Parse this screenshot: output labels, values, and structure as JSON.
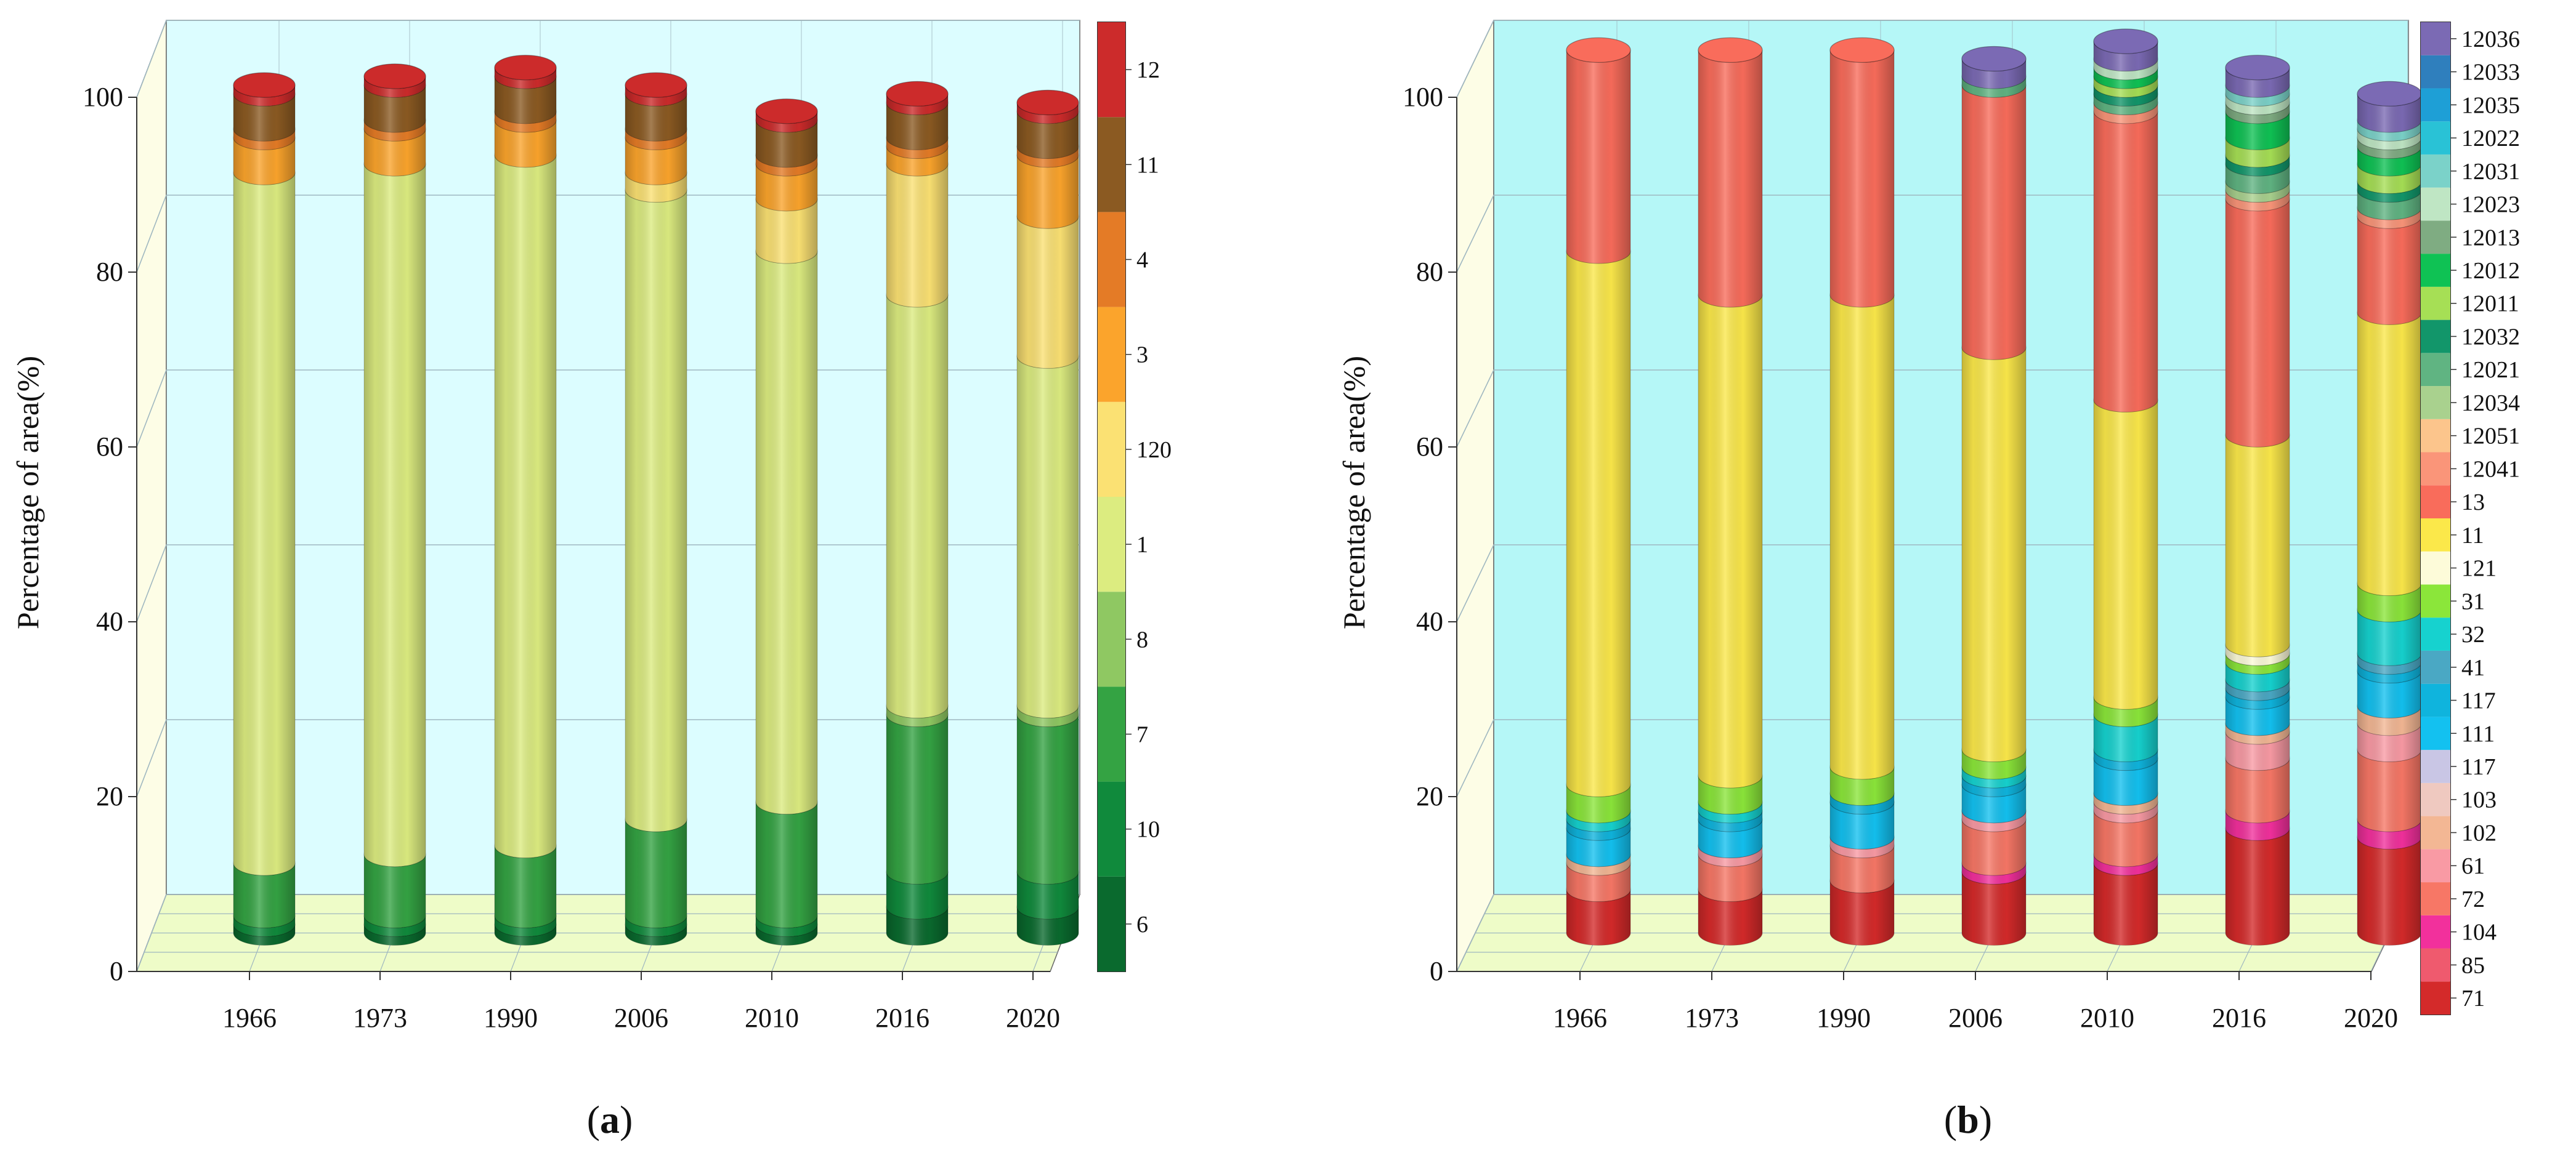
{
  "figure": {
    "panels": [
      {
        "label_open": "(",
        "label_letter": "a",
        "label_close": ")"
      },
      {
        "label_open": "(",
        "label_letter": "b",
        "label_close": ")"
      }
    ]
  },
  "colors": {
    "back_wall": "#dcfdff",
    "back_wall_b": "#b5f7f7",
    "floor": "#eefcc8",
    "side_wall": "#fdfde6",
    "grid": "#9fb7c0"
  },
  "chart_data": [
    {
      "type": "bar",
      "style": "3d-stacked-cylinders",
      "title": "",
      "xlabel": "",
      "ylabel": "Percentage of area(%)",
      "ylim": [
        0,
        100
      ],
      "yticks": [
        0,
        20,
        40,
        60,
        80,
        100
      ],
      "grid": true,
      "legend_placement": "right (color bar)",
      "categories": [
        "1966",
        "1973",
        "1990",
        "2006",
        "2010",
        "2016",
        "2020"
      ],
      "series": [
        {
          "name": "6",
          "color": "#0a6a2e",
          "values": [
            1,
            1,
            1,
            1,
            1,
            3,
            3
          ]
        },
        {
          "name": "10",
          "color": "#108a3c",
          "values": [
            1,
            1,
            1,
            1,
            1,
            4,
            4
          ]
        },
        {
          "name": "7",
          "color": "#34a343",
          "values": [
            6,
            7,
            8,
            11,
            13,
            18,
            18
          ]
        },
        {
          "name": "8",
          "color": "#8fc862",
          "values": [
            0,
            0,
            0,
            0,
            0,
            1,
            1
          ]
        },
        {
          "name": "1",
          "color": "#dcec80",
          "values": [
            79,
            79,
            79,
            72,
            63,
            47,
            40
          ]
        },
        {
          "name": "120",
          "color": "#fbe173",
          "values": [
            0,
            0,
            0,
            2,
            6,
            15,
            16
          ]
        },
        {
          "name": "3",
          "color": "#fba42c",
          "values": [
            4,
            4,
            4,
            4,
            4,
            2,
            7
          ]
        },
        {
          "name": "4",
          "color": "#e47b26",
          "values": [
            1,
            1,
            1,
            1,
            1,
            1,
            1
          ]
        },
        {
          "name": "11",
          "color": "#8b5a22",
          "values": [
            4,
            4,
            4,
            4,
            4,
            4,
            4
          ]
        },
        {
          "name": "12",
          "color": "#cc2b2b",
          "values": [
            1,
            1,
            1,
            1,
            1,
            1,
            1
          ]
        }
      ]
    },
    {
      "type": "bar",
      "style": "3d-stacked-cylinders",
      "title": "",
      "xlabel": "",
      "ylabel": "Percentage of area(%)",
      "ylim": [
        0,
        100
      ],
      "yticks": [
        0,
        20,
        40,
        60,
        80,
        100
      ],
      "grid": true,
      "legend_placement": "right (color bar)",
      "categories": [
        "1966",
        "1973",
        "1990",
        "2006",
        "2010",
        "2016",
        "2020"
      ],
      "series": [
        {
          "name": "71",
          "color": "#d42a2a",
          "values": [
            5,
            5,
            6,
            7,
            8,
            12,
            11
          ]
        },
        {
          "name": "85",
          "color": "#ef5a6e",
          "values": [
            0,
            0,
            0,
            0,
            0,
            0,
            0
          ]
        },
        {
          "name": "104",
          "color": "#f2309c",
          "values": [
            0,
            0,
            0,
            1,
            1,
            2,
            2
          ]
        },
        {
          "name": "72",
          "color": "#f77766",
          "values": [
            3,
            4,
            4,
            5,
            5,
            6,
            8
          ]
        },
        {
          "name": "61",
          "color": "#f99aa4",
          "values": [
            0,
            1,
            1,
            1,
            1,
            3,
            3
          ]
        },
        {
          "name": "102",
          "color": "#f3b794",
          "values": [
            1,
            0,
            0,
            0,
            1,
            1,
            2
          ]
        },
        {
          "name": "103",
          "color": "#efc9c0",
          "values": [
            0,
            0,
            0,
            0,
            0,
            0,
            0
          ]
        },
        {
          "name": "117",
          "color": "#c9c6e5",
          "values": [
            0,
            0,
            0,
            0,
            0,
            0,
            0
          ]
        },
        {
          "name": "111",
          "color": "#13c1f0",
          "values": [
            3,
            3,
            4,
            3,
            4,
            3,
            4
          ]
        },
        {
          "name": "117",
          "color": "#0fb4dd",
          "values": [
            1,
            1,
            1,
            1,
            1,
            1,
            1
          ]
        },
        {
          "name": "41",
          "color": "#4aa8c4",
          "values": [
            0,
            0,
            0,
            0,
            0,
            1,
            1
          ]
        },
        {
          "name": "32",
          "color": "#16d2cf",
          "values": [
            1,
            1,
            0,
            1,
            4,
            2,
            5
          ]
        },
        {
          "name": "31",
          "color": "#8be63a",
          "values": [
            3,
            3,
            3,
            2,
            2,
            1,
            3
          ]
        },
        {
          "name": "121",
          "color": "#fdfbd9",
          "values": [
            0,
            0,
            0,
            0,
            0,
            1,
            0
          ]
        },
        {
          "name": "11",
          "color": "#fbe84a",
          "values": [
            61,
            55,
            54,
            46,
            34,
            24,
            31
          ]
        },
        {
          "name": "13",
          "color": "#f96c5b",
          "values": [
            23,
            28,
            28,
            30,
            33,
            27,
            11
          ]
        },
        {
          "name": "12041",
          "color": "#fa9579",
          "values": [
            0,
            0,
            0,
            0,
            1,
            1,
            1
          ]
        },
        {
          "name": "12051",
          "color": "#fcc58c",
          "values": [
            0,
            0,
            0,
            0,
            0,
            0,
            0
          ]
        },
        {
          "name": "12034",
          "color": "#a9d18e",
          "values": [
            0,
            0,
            0,
            0,
            0,
            1,
            0
          ]
        },
        {
          "name": "12021",
          "color": "#60b482",
          "values": [
            0,
            0,
            0,
            1,
            1,
            2,
            2
          ]
        },
        {
          "name": "12032",
          "color": "#12966a",
          "values": [
            0,
            0,
            0,
            0,
            1,
            1,
            1
          ]
        },
        {
          "name": "12011",
          "color": "#a6df55",
          "values": [
            0,
            0,
            0,
            0,
            1,
            2,
            2
          ]
        },
        {
          "name": "12012",
          "color": "#0fc254",
          "values": [
            0,
            0,
            0,
            0,
            1,
            3,
            2
          ]
        },
        {
          "name": "12013",
          "color": "#7fac82",
          "values": [
            0,
            0,
            0,
            0,
            0,
            1,
            1
          ]
        },
        {
          "name": "12023",
          "color": "#bfe6c4",
          "values": [
            0,
            0,
            0,
            0,
            1,
            1,
            1
          ]
        },
        {
          "name": "12031",
          "color": "#7bd2c9",
          "values": [
            0,
            0,
            0,
            0,
            0,
            1,
            1
          ]
        },
        {
          "name": "12022",
          "color": "#29c2d6",
          "values": [
            0,
            0,
            0,
            0,
            0,
            0,
            0
          ]
        },
        {
          "name": "12035",
          "color": "#1e9fd6",
          "values": [
            0,
            0,
            0,
            0,
            0,
            0,
            0
          ]
        },
        {
          "name": "12033",
          "color": "#2f7fbd",
          "values": [
            0,
            0,
            0,
            0,
            0,
            0,
            0
          ]
        },
        {
          "name": "12036",
          "color": "#7b6ab4",
          "values": [
            0,
            0,
            0,
            2,
            2,
            2,
            3
          ]
        }
      ]
    }
  ]
}
